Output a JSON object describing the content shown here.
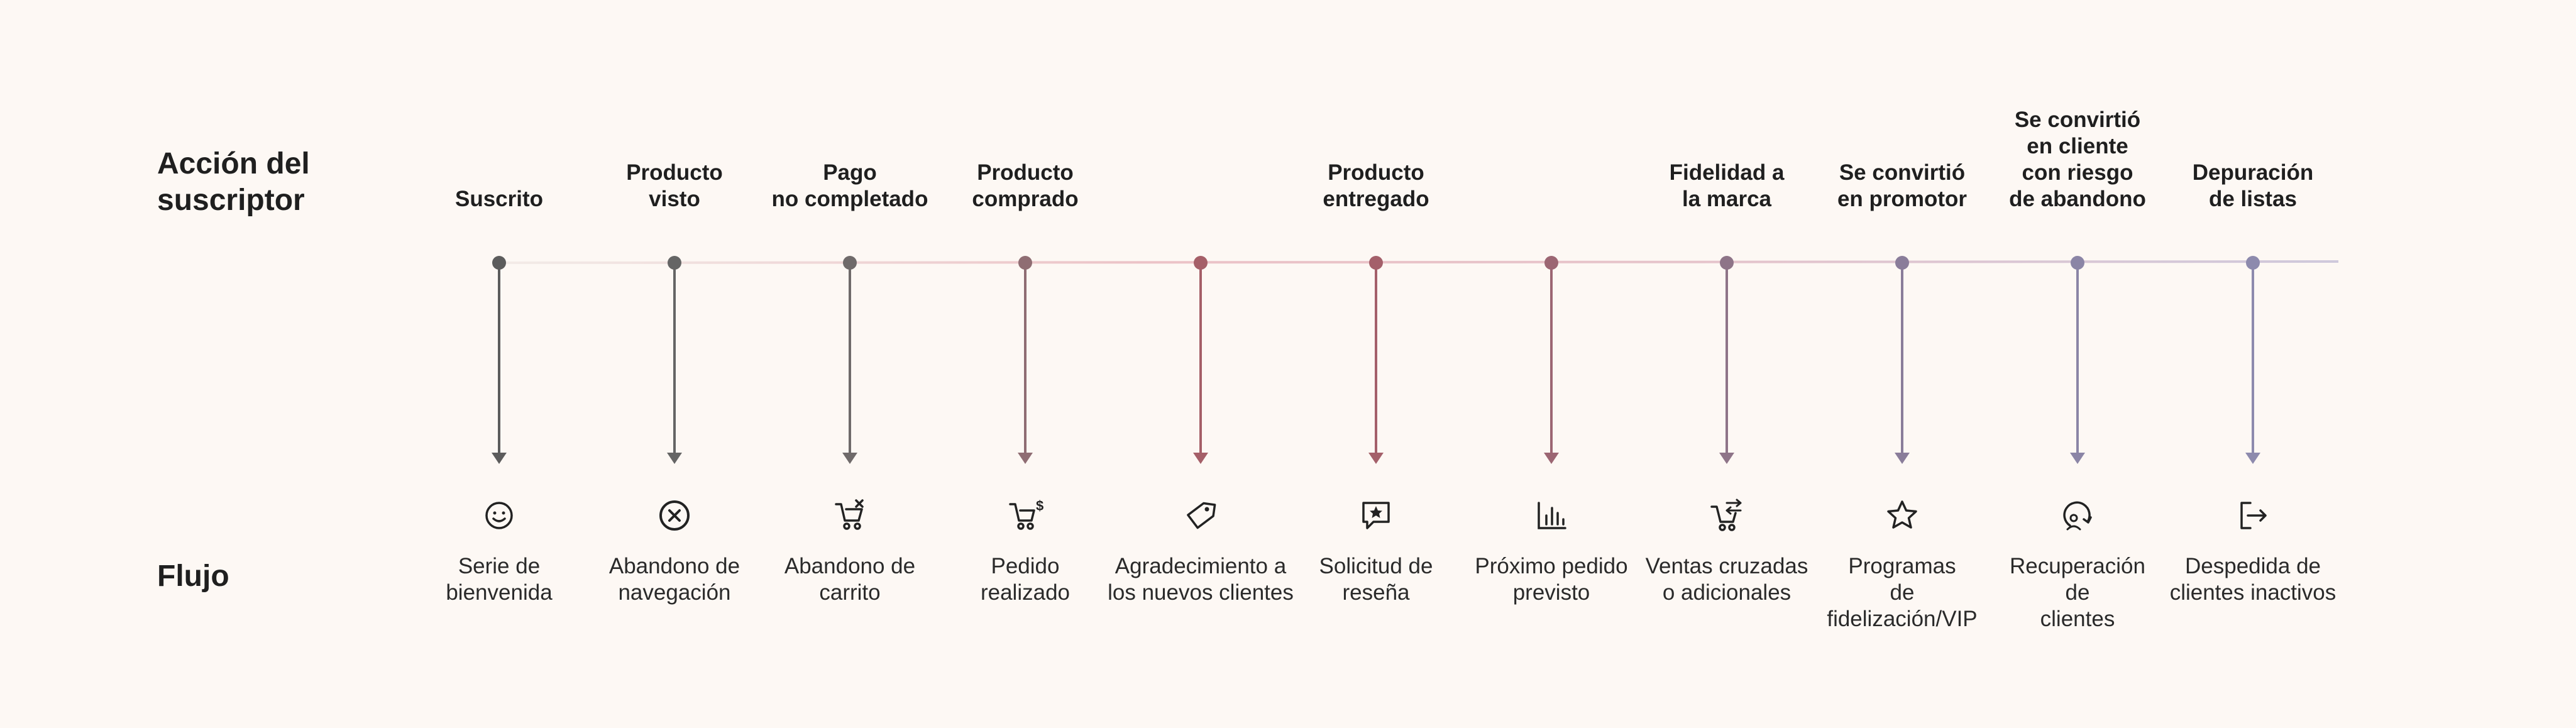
{
  "rows": {
    "action_label": "Acción del\nsuscriptor",
    "flow_label": "Flujo"
  },
  "steps": [
    {
      "action": "Suscrito",
      "flow": "Serie de\nbienvenida",
      "icon": "smile-icon",
      "color": "#5c5c5c"
    },
    {
      "action": "Producto\nvisto",
      "flow": "Abandono de\nnavegación",
      "icon": "x-circle-icon",
      "color": "#656565"
    },
    {
      "action": "Pago\nno completado",
      "flow": "Abandono de\ncarrito",
      "icon": "cart-x-icon",
      "color": "#6f6a6a"
    },
    {
      "action": "Producto\ncomprado",
      "flow": "Pedido\nrealizado",
      "icon": "cart-dollar-icon",
      "color": "#8f6d73"
    },
    {
      "action": "",
      "flow": "Agradecimiento a\nlos nuevos clientes",
      "icon": "tag-icon",
      "color": "#a55f68"
    },
    {
      "action": "Producto\nentregado",
      "flow": "Solicitud de\nreseña",
      "icon": "star-message-icon",
      "color": "#a4606a"
    },
    {
      "action": "",
      "flow": "Próximo pedido\nprevisto",
      "icon": "bar-chart-icon",
      "color": "#9c6673"
    },
    {
      "action": "Fidelidad a\nla marca",
      "flow": "Ventas cruzadas\no adicionales",
      "icon": "cart-arrows-icon",
      "color": "#8e7488"
    },
    {
      "action": "Se convirtió\nen promotor",
      "flow": "Programas\nde\nfidelización/VIP",
      "icon": "star-icon",
      "color": "#8a7d9a"
    },
    {
      "action": "Se convirtió\nen  cliente\ncon riesgo\nde abandono",
      "flow": "Recuperación\nde\nclientes",
      "icon": "user-refresh-icon",
      "color": "#8b85a6"
    },
    {
      "action": "Depuración\nde listas",
      "flow": "Despedida de\nclientes inactivos",
      "icon": "logout-icon",
      "color": "#8d8aad"
    }
  ]
}
